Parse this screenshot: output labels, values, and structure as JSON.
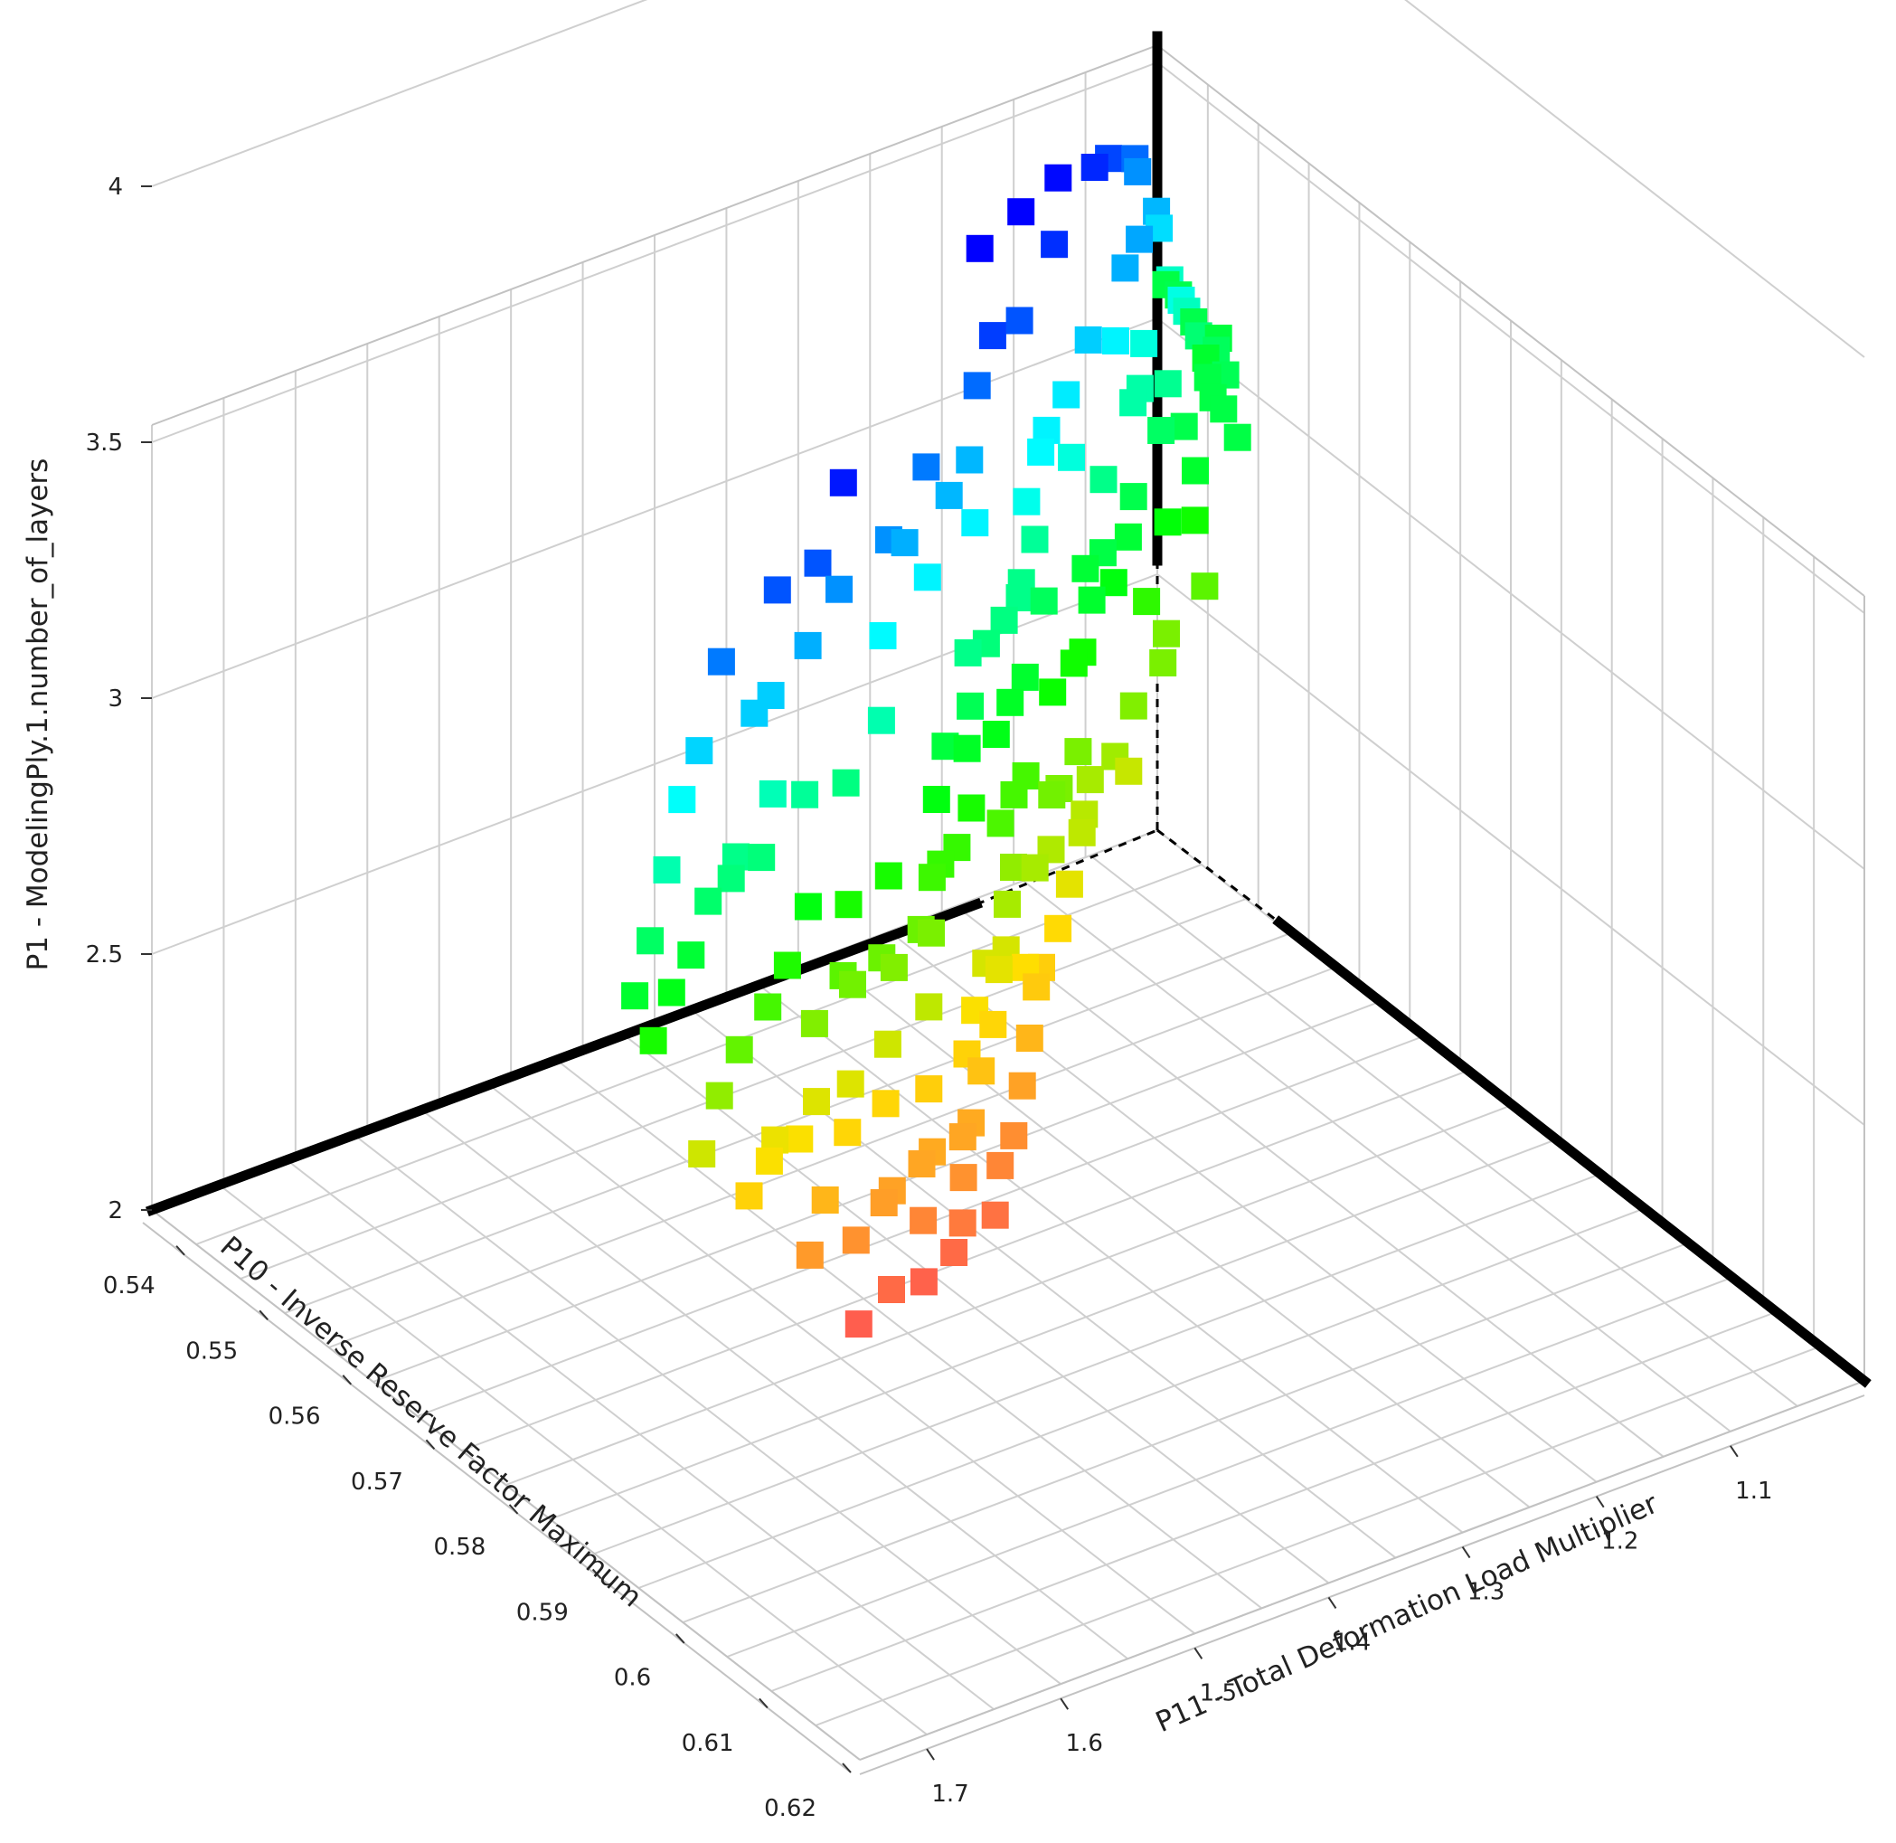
{
  "chart_data": {
    "type": "scatter3d",
    "title": "",
    "zlabel": "P1 - ModelingPly.1.number_of_layers",
    "xlabel": "P10 - Inverse Reserve Factor Maximum",
    "ylabel": "P11 - Total Deformation Load Multiplier",
    "z_ticks": [
      "2",
      "2.5",
      "3",
      "3.5",
      "4"
    ],
    "x_ticks": [
      "0.54",
      "0.55",
      "0.56",
      "0.57",
      "0.58",
      "0.59",
      "0.6",
      "0.61",
      "0.62"
    ],
    "y_ticks": [
      "1.1",
      "1.2",
      "1.3",
      "1.4",
      "1.5",
      "1.6",
      "1.7"
    ],
    "zlim": [
      2,
      4
    ],
    "xlim": [
      0.535,
      0.62
    ],
    "ylim": [
      1.75,
      1.0
    ],
    "grid": true,
    "legend": "none",
    "marker": "square",
    "color_scale": [
      "#ff5a50",
      "#ffe000",
      "#00ff00",
      "#00ffff",
      "#0000ff"
    ],
    "points": [
      [
        0.5361,
        1.0004,
        3.08
      ],
      [
        0.5382,
        1.0041,
        3.09
      ],
      [
        0.5432,
        1.0053,
        3.07
      ],
      [
        0.5416,
        1.0138,
        3.09
      ],
      [
        0.5437,
        1.0179,
        3.05
      ],
      [
        0.5465,
        1.0275,
        3.11
      ],
      [
        0.5474,
        1.0395,
        3.08
      ],
      [
        0.5489,
        1.0354,
        3.1
      ],
      [
        0.5459,
        1.0369,
        3.14
      ],
      [
        0.5497,
        1.0498,
        3.08
      ],
      [
        0.5448,
        1.0516,
        3.25
      ],
      [
        0.5513,
        1.0518,
        3.08
      ],
      [
        0.5482,
        1.0601,
        3.24
      ],
      [
        0.5454,
        1.0632,
        3.37
      ],
      [
        0.5548,
        1.0632,
        3.08
      ],
      [
        0.544,
        1.0706,
        3.47
      ],
      [
        0.5462,
        1.0702,
        3.42
      ],
      [
        0.5452,
        1.08,
        3.52
      ],
      [
        0.5495,
        1.0722,
        3.29
      ],
      [
        0.5521,
        1.0862,
        3.09
      ],
      [
        0.5518,
        1.0964,
        3.18
      ],
      [
        0.555,
        1.0959,
        3.05
      ],
      [
        0.5468,
        1.1097,
        3.57
      ],
      [
        0.5495,
        1.1035,
        3.44
      ],
      [
        0.5532,
        1.1103,
        3.12
      ],
      [
        0.5559,
        1.1017,
        2.97
      ],
      [
        0.5578,
        1.1063,
        2.87
      ],
      [
        0.5528,
        1.1235,
        3.21
      ],
      [
        0.552,
        1.1157,
        3.28
      ],
      [
        0.5514,
        1.1259,
        3.43
      ],
      [
        0.5566,
        1.1264,
        3.0
      ],
      [
        0.5493,
        1.1356,
        3.61
      ],
      [
        0.554,
        1.1362,
        3.21
      ],
      [
        0.5591,
        1.143,
        2.83
      ],
      [
        0.5538,
        1.1479,
        3.34
      ],
      [
        0.5574,
        1.1569,
        3.09
      ],
      [
        0.5603,
        1.1652,
        2.93
      ],
      [
        0.562,
        1.1636,
        2.83
      ],
      [
        0.5511,
        1.174,
        3.65
      ],
      [
        0.5553,
        1.1776,
        3.39
      ],
      [
        0.5598,
        1.1757,
        3.06
      ],
      [
        0.5587,
        1.1874,
        3.17
      ],
      [
        0.5613,
        1.1959,
        3.01
      ],
      [
        0.5552,
        1.2023,
        3.6
      ],
      [
        0.5615,
        1.2052,
        3.08
      ],
      [
        0.5648,
        1.2028,
        2.82
      ],
      [
        0.558,
        1.2109,
        3.35
      ],
      [
        0.5614,
        1.2177,
        3.06
      ],
      [
        0.5666,
        1.2177,
        2.73
      ],
      [
        0.5553,
        1.2278,
        3.69
      ],
      [
        0.561,
        1.2256,
        3.28
      ],
      [
        0.5644,
        1.2315,
        3.05
      ],
      [
        0.5672,
        1.2316,
        2.78
      ],
      [
        0.5604,
        1.2404,
        3.34
      ],
      [
        0.5652,
        1.2433,
        2.97
      ],
      [
        0.5591,
        1.2525,
        3.55
      ],
      [
        0.5619,
        1.2541,
        3.33
      ],
      [
        0.566,
        1.2548,
        2.97
      ],
      [
        0.5681,
        1.2557,
        2.77
      ],
      [
        0.5633,
        1.2672,
        3.19
      ],
      [
        0.5679,
        1.2635,
        2.83
      ],
      [
        0.5575,
        1.2722,
        3.69
      ],
      [
        0.5658,
        1.2759,
        3.11
      ],
      [
        0.5704,
        1.2744,
        2.75
      ],
      [
        0.5612,
        1.2856,
        3.58
      ],
      [
        0.5649,
        1.2833,
        3.3
      ],
      [
        0.5687,
        1.2875,
        2.98
      ],
      [
        0.5717,
        1.2842,
        2.74
      ],
      [
        0.5662,
        1.2952,
        3.17
      ],
      [
        0.571,
        1.2969,
        2.83
      ],
      [
        0.5626,
        1.3059,
        3.52
      ],
      [
        0.5677,
        1.306,
        3.17
      ],
      [
        0.5719,
        1.308,
        2.84
      ],
      [
        0.5739,
        1.3072,
        2.69
      ],
      [
        0.5698,
        1.3148,
        3.05
      ],
      [
        0.5733,
        1.3172,
        2.76
      ],
      [
        0.5647,
        1.3246,
        3.42
      ],
      [
        0.5689,
        1.3249,
        3.16
      ],
      [
        0.5721,
        1.3286,
        2.9
      ],
      [
        0.5754,
        1.3251,
        2.64
      ],
      [
        0.5672,
        1.3361,
        3.34
      ],
      [
        0.5713,
        1.3353,
        3.04
      ],
      [
        0.5751,
        1.3404,
        2.77
      ],
      [
        0.5701,
        1.3456,
        3.15
      ],
      [
        0.5736,
        1.3467,
        2.9
      ],
      [
        0.5772,
        1.3485,
        2.61
      ],
      [
        0.5676,
        1.3579,
        3.42
      ],
      [
        0.573,
        1.3563,
        3.02
      ],
      [
        0.5758,
        1.3607,
        2.8
      ],
      [
        0.5785,
        1.3605,
        2.6
      ],
      [
        0.5714,
        1.3674,
        3.17
      ],
      [
        0.5755,
        1.3686,
        2.89
      ],
      [
        0.5787,
        1.3699,
        2.65
      ],
      [
        0.568,
        1.3774,
        3.5
      ],
      [
        0.5733,
        1.3775,
        3.1
      ],
      [
        0.5778,
        1.3779,
        2.77
      ],
      [
        0.5809,
        1.3804,
        2.55
      ],
      [
        0.5744,
        1.3867,
        3.04
      ],
      [
        0.5793,
        1.3881,
        2.71
      ],
      [
        0.571,
        1.3951,
        3.34
      ],
      [
        0.5765,
        1.3965,
        2.96
      ],
      [
        0.58,
        1.3977,
        2.69
      ],
      [
        0.5829,
        1.3983,
        2.5
      ],
      [
        0.5749,
        1.4061,
        3.07
      ],
      [
        0.5799,
        1.4069,
        2.71
      ],
      [
        0.5713,
        1.414,
        3.43
      ],
      [
        0.5779,
        1.416,
        2.92
      ],
      [
        0.5823,
        1.4164,
        2.63
      ],
      [
        0.5851,
        1.4183,
        2.45
      ],
      [
        0.5769,
        1.425,
        3.01
      ],
      [
        0.5817,
        1.4263,
        2.66
      ],
      [
        0.5725,
        1.4334,
        3.47
      ],
      [
        0.579,
        1.435,
        2.92
      ],
      [
        0.584,
        1.4358,
        2.58
      ],
      [
        0.5866,
        1.4378,
        2.43
      ],
      [
        0.5795,
        1.4445,
        2.91
      ],
      [
        0.5838,
        1.4452,
        2.62
      ],
      [
        0.5748,
        1.452,
        3.33
      ],
      [
        0.581,
        1.4544,
        2.83
      ],
      [
        0.5858,
        1.4545,
        2.52
      ],
      [
        0.5889,
        1.4558,
        2.38
      ],
      [
        0.5813,
        1.4639,
        2.85
      ],
      [
        0.5864,
        1.4645,
        2.51
      ],
      [
        0.5733,
        1.4721,
        3.63
      ],
      [
        0.5777,
        1.4711,
        3.22
      ],
      [
        0.5838,
        1.4736,
        2.74
      ],
      [
        0.588,
        1.4739,
        2.46
      ],
      [
        0.5803,
        1.4819,
        2.96
      ],
      [
        0.5854,
        1.4836,
        2.61
      ],
      [
        0.5895,
        1.4838,
        2.4
      ],
      [
        0.5757,
        1.4903,
        3.47
      ],
      [
        0.5826,
        1.4921,
        2.82
      ],
      [
        0.5873,
        1.4928,
        2.52
      ],
      [
        0.5901,
        1.494,
        2.36
      ],
      [
        0.5827,
        1.5019,
        2.85
      ],
      [
        0.5876,
        1.5025,
        2.51
      ],
      [
        0.5764,
        1.5105,
        3.55
      ],
      [
        0.5796,
        1.5094,
        3.16
      ],
      [
        0.585,
        1.5117,
        2.72
      ],
      [
        0.5893,
        1.512,
        2.43
      ],
      [
        0.5817,
        1.5205,
        2.96
      ],
      [
        0.5863,
        1.5213,
        2.63
      ],
      [
        0.5909,
        1.5214,
        2.34
      ],
      [
        0.5782,
        1.529,
        3.43
      ],
      [
        0.5838,
        1.5305,
        2.84
      ],
      [
        0.5887,
        1.5314,
        2.5
      ],
      [
        0.5841,
        1.5394,
        2.87
      ],
      [
        0.5891,
        1.54,
        2.49
      ],
      [
        0.5776,
        1.5481,
        3.55
      ],
      [
        0.5808,
        1.5475,
        3.19
      ],
      [
        0.5866,
        1.5494,
        2.7
      ],
      [
        0.5915,
        1.5493,
        2.36
      ],
      [
        0.583,
        1.5586,
        3.01
      ],
      [
        0.5878,
        1.5592,
        2.63
      ],
      [
        0.5798,
        1.5666,
        3.39
      ],
      [
        0.5853,
        1.5682,
        2.82
      ],
      [
        0.5903,
        1.5683,
        2.46
      ],
      [
        0.5816,
        1.5763,
        3.23
      ],
      [
        0.5871,
        1.578,
        2.7
      ],
      [
        0.5922,
        1.5781,
        2.33
      ],
      [
        0.581,
        1.5864,
        3.39
      ],
      [
        0.5851,
        1.5872,
        2.95
      ],
      [
        0.5897,
        1.5876,
        2.55
      ],
      [
        0.5835,
        1.5966,
        3.15
      ],
      [
        0.5882,
        1.5974,
        2.66
      ],
      [
        0.5802,
        1.606,
        3.5
      ],
      [
        0.586,
        1.6074,
        2.9
      ],
      [
        0.5911,
        1.6077,
        2.48
      ],
      [
        0.5835,
        1.6157,
        3.17
      ],
      [
        0.5884,
        1.617,
        2.68
      ],
      [
        0.5845,
        1.6254,
        3.15
      ],
      [
        0.5893,
        1.6268,
        2.66
      ],
      [
        0.5822,
        1.635,
        3.38
      ],
      [
        0.5872,
        1.6361,
        2.86
      ],
      [
        0.5849,
        1.6451,
        3.13
      ],
      [
        0.59,
        1.6462,
        2.62
      ],
      [
        0.5834,
        1.6553,
        3.32
      ],
      [
        0.588,
        1.6559,
        2.8
      ],
      [
        0.5861,
        1.6653,
        3.06
      ],
      [
        0.5848,
        1.6753,
        3.22
      ],
      [
        0.5891,
        1.6759,
        2.72
      ],
      [
        0.5871,
        1.686,
        3.02
      ],
      [
        0.5862,
        1.6964,
        3.12
      ],
      [
        0.5882,
        1.7065,
        2.96
      ],
      [
        0.5876,
        1.7166,
        3.05
      ]
    ]
  }
}
